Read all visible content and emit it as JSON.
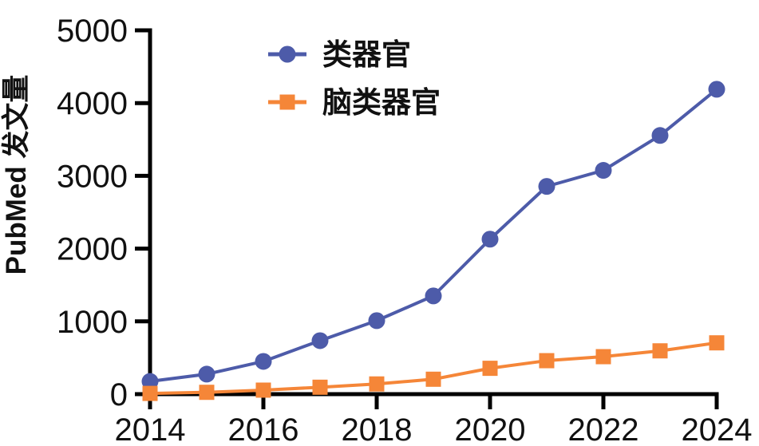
{
  "figure": {
    "background": "#ffffff",
    "axis_color": "#000000",
    "text_color": "#111111"
  },
  "chart_data": {
    "type": "line",
    "title": "",
    "xlabel": "",
    "ylabel": "PubMed 发文量",
    "xlim": [
      2014,
      2024
    ],
    "ylim": [
      0,
      5000
    ],
    "grid": false,
    "legend_position": "inside-top-left",
    "x": [
      2014,
      2015,
      2016,
      2017,
      2018,
      2019,
      2020,
      2021,
      2022,
      2023,
      2024
    ],
    "x_ticks": [
      2014,
      2016,
      2018,
      2020,
      2022,
      2024
    ],
    "x_tick_labels": [
      "2014",
      "2016",
      "2018",
      "2020",
      "2022",
      "2024"
    ],
    "y_ticks": [
      0,
      1000,
      2000,
      3000,
      4000,
      5000
    ],
    "y_tick_labels": [
      "0",
      "1000",
      "2000",
      "3000",
      "4000",
      "5000"
    ],
    "series": [
      {
        "id": "organoid",
        "name": "类器官",
        "color": "#4D5BA9",
        "marker": "circle",
        "values": [
          175,
          275,
          450,
          735,
          1010,
          1350,
          2130,
          2855,
          3075,
          3555,
          4190
        ]
      },
      {
        "id": "brain-organoid",
        "name": "脑类器官",
        "color": "#F58638",
        "marker": "square",
        "values": [
          10,
          25,
          55,
          95,
          140,
          205,
          355,
          460,
          515,
          595,
          705
        ]
      }
    ]
  }
}
